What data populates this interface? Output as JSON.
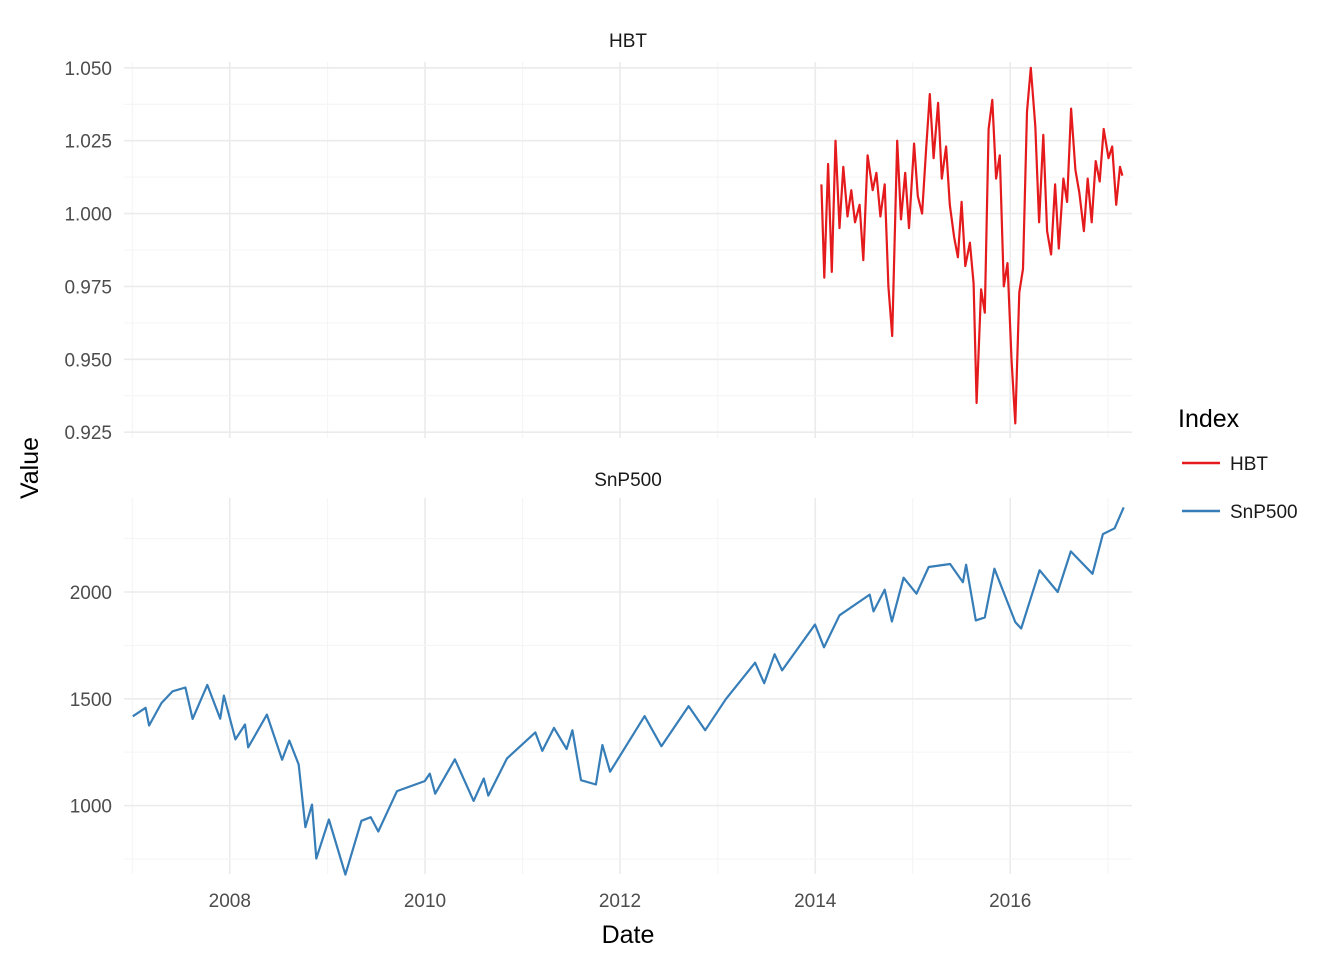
{
  "chart_data": {
    "type": "line",
    "facet": "vertical, free y scales, shared x",
    "xlabel": "Date",
    "ylabel": "Value",
    "legend": {
      "title": "Index",
      "position": "right"
    },
    "grid": true,
    "x_range": [
      "2006-12-01",
      "2017-04-01"
    ],
    "x_ticks": [
      "2008",
      "2010",
      "2012",
      "2014",
      "2016"
    ],
    "colors": {
      "HBT": "#e41a1c",
      "SnP500": "#377eb8",
      "grid_major": "#ebebeb",
      "grid_minor": "#f5f5f5"
    },
    "panels": [
      {
        "strip": "HBT",
        "series": "HBT",
        "ylim": [
          0.923,
          1.052
        ],
        "y_ticks": [
          "0.925",
          "0.950",
          "0.975",
          "1.000",
          "1.025",
          "1.050"
        ],
        "points": [
          [
            "2014-01-24",
            1.01
          ],
          [
            "2014-02-04",
            0.978
          ],
          [
            "2014-02-18",
            1.017
          ],
          [
            "2014-03-04",
            0.98
          ],
          [
            "2014-03-18",
            1.025
          ],
          [
            "2014-04-02",
            0.995
          ],
          [
            "2014-04-16",
            1.016
          ],
          [
            "2014-05-02",
            0.999
          ],
          [
            "2014-05-16",
            1.008
          ],
          [
            "2014-05-30",
            0.997
          ],
          [
            "2014-06-16",
            1.003
          ],
          [
            "2014-06-30",
            0.984
          ],
          [
            "2014-07-16",
            1.02
          ],
          [
            "2014-08-04",
            1.008
          ],
          [
            "2014-08-18",
            1.014
          ],
          [
            "2014-09-02",
            0.999
          ],
          [
            "2014-09-18",
            1.01
          ],
          [
            "2014-10-02",
            0.975
          ],
          [
            "2014-10-16",
            0.958
          ],
          [
            "2014-11-04",
            1.025
          ],
          [
            "2014-11-18",
            0.998
          ],
          [
            "2014-12-04",
            1.014
          ],
          [
            "2014-12-18",
            0.995
          ],
          [
            "2015-01-06",
            1.024
          ],
          [
            "2015-01-20",
            1.006
          ],
          [
            "2015-02-05",
            1.0
          ],
          [
            "2015-02-20",
            1.022
          ],
          [
            "2015-03-06",
            1.041
          ],
          [
            "2015-03-20",
            1.019
          ],
          [
            "2015-04-06",
            1.038
          ],
          [
            "2015-04-20",
            1.012
          ],
          [
            "2015-05-06",
            1.023
          ],
          [
            "2015-05-20",
            1.003
          ],
          [
            "2015-06-05",
            0.992
          ],
          [
            "2015-06-19",
            0.985
          ],
          [
            "2015-07-03",
            1.004
          ],
          [
            "2015-07-17",
            0.982
          ],
          [
            "2015-08-03",
            0.99
          ],
          [
            "2015-08-17",
            0.976
          ],
          [
            "2015-08-28",
            0.935
          ],
          [
            "2015-09-14",
            0.974
          ],
          [
            "2015-09-28",
            0.966
          ],
          [
            "2015-10-12",
            1.029
          ],
          [
            "2015-10-26",
            1.039
          ],
          [
            "2015-11-09",
            1.012
          ],
          [
            "2015-11-23",
            1.02
          ],
          [
            "2015-12-08",
            0.975
          ],
          [
            "2015-12-22",
            0.983
          ],
          [
            "2016-01-06",
            0.95
          ],
          [
            "2016-01-20",
            0.928
          ],
          [
            "2016-02-04",
            0.973
          ],
          [
            "2016-02-18",
            0.981
          ],
          [
            "2016-03-04",
            1.035
          ],
          [
            "2016-03-18",
            1.05
          ],
          [
            "2016-04-04",
            1.03
          ],
          [
            "2016-04-18",
            0.997
          ],
          [
            "2016-05-04",
            1.027
          ],
          [
            "2016-05-18",
            0.994
          ],
          [
            "2016-06-02",
            0.986
          ],
          [
            "2016-06-17",
            1.01
          ],
          [
            "2016-07-01",
            0.988
          ],
          [
            "2016-07-18",
            1.012
          ],
          [
            "2016-08-01",
            1.004
          ],
          [
            "2016-08-16",
            1.036
          ],
          [
            "2016-09-01",
            1.015
          ],
          [
            "2016-09-16",
            1.007
          ],
          [
            "2016-10-03",
            0.994
          ],
          [
            "2016-10-17",
            1.012
          ],
          [
            "2016-11-01",
            0.997
          ],
          [
            "2016-11-16",
            1.018
          ],
          [
            "2016-12-01",
            1.011
          ],
          [
            "2016-12-16",
            1.029
          ],
          [
            "2017-01-03",
            1.019
          ],
          [
            "2017-01-17",
            1.023
          ],
          [
            "2017-02-01",
            1.003
          ],
          [
            "2017-02-15",
            1.016
          ],
          [
            "2017-02-24",
            1.013
          ]
        ]
      },
      {
        "strip": "SnP500",
        "series": "SnP500",
        "ylim": [
          680,
          2440
        ],
        "y_ticks": [
          "1000",
          "1500",
          "2000"
        ],
        "points": [
          [
            "2007-01-03",
            1418
          ],
          [
            "2007-02-20",
            1458
          ],
          [
            "2007-03-05",
            1375
          ],
          [
            "2007-04-20",
            1480
          ],
          [
            "2007-06-01",
            1535
          ],
          [
            "2007-07-19",
            1553
          ],
          [
            "2007-08-15",
            1406
          ],
          [
            "2007-10-09",
            1565
          ],
          [
            "2007-11-26",
            1407
          ],
          [
            "2007-12-10",
            1515
          ],
          [
            "2008-01-22",
            1310
          ],
          [
            "2008-02-27",
            1380
          ],
          [
            "2008-03-10",
            1273
          ],
          [
            "2008-05-19",
            1426
          ],
          [
            "2008-07-15",
            1215
          ],
          [
            "2008-08-11",
            1305
          ],
          [
            "2008-09-15",
            1192
          ],
          [
            "2008-10-10",
            899
          ],
          [
            "2008-11-04",
            1005
          ],
          [
            "2008-11-20",
            752
          ],
          [
            "2009-01-06",
            935
          ],
          [
            "2009-03-09",
            677
          ],
          [
            "2009-05-08",
            929
          ],
          [
            "2009-06-12",
            946
          ],
          [
            "2009-07-10",
            879
          ],
          [
            "2009-09-18",
            1068
          ],
          [
            "2009-12-31",
            1115
          ],
          [
            "2010-01-19",
            1150
          ],
          [
            "2010-02-08",
            1056
          ],
          [
            "2010-04-23",
            1217
          ],
          [
            "2010-07-02",
            1022
          ],
          [
            "2010-08-09",
            1127
          ],
          [
            "2010-08-26",
            1047
          ],
          [
            "2010-11-04",
            1221
          ],
          [
            "2011-02-18",
            1343
          ],
          [
            "2011-03-16",
            1256
          ],
          [
            "2011-04-29",
            1364
          ],
          [
            "2011-06-15",
            1265
          ],
          [
            "2011-07-07",
            1353
          ],
          [
            "2011-08-08",
            1119
          ],
          [
            "2011-10-03",
            1099
          ],
          [
            "2011-10-27",
            1284
          ],
          [
            "2011-11-25",
            1159
          ],
          [
            "2012-04-02",
            1419
          ],
          [
            "2012-06-04",
            1278
          ],
          [
            "2012-09-14",
            1466
          ],
          [
            "2012-11-15",
            1353
          ],
          [
            "2013-01-31",
            1498
          ],
          [
            "2013-05-21",
            1669
          ],
          [
            "2013-06-24",
            1573
          ],
          [
            "2013-08-02",
            1709
          ],
          [
            "2013-08-30",
            1633
          ],
          [
            "2013-12-31",
            1848
          ],
          [
            "2014-02-03",
            1741
          ],
          [
            "2014-04-02",
            1891
          ],
          [
            "2014-07-24",
            1988
          ],
          [
            "2014-08-07",
            1909
          ],
          [
            "2014-09-18",
            2011
          ],
          [
            "2014-10-15",
            1862
          ],
          [
            "2014-11-28",
            2067
          ],
          [
            "2015-01-15",
            1992
          ],
          [
            "2015-03-02",
            2117
          ],
          [
            "2015-05-21",
            2131
          ],
          [
            "2015-07-08",
            2046
          ],
          [
            "2015-07-20",
            2128
          ],
          [
            "2015-08-25",
            1867
          ],
          [
            "2015-09-28",
            1881
          ],
          [
            "2015-11-03",
            2109
          ],
          [
            "2016-01-20",
            1859
          ],
          [
            "2016-02-11",
            1829
          ],
          [
            "2016-04-20",
            2102
          ],
          [
            "2016-06-27",
            2000
          ],
          [
            "2016-08-15",
            2190
          ],
          [
            "2016-11-04",
            2085
          ],
          [
            "2016-12-13",
            2271
          ],
          [
            "2017-01-26",
            2298
          ],
          [
            "2017-03-01",
            2396
          ]
        ]
      }
    ]
  }
}
